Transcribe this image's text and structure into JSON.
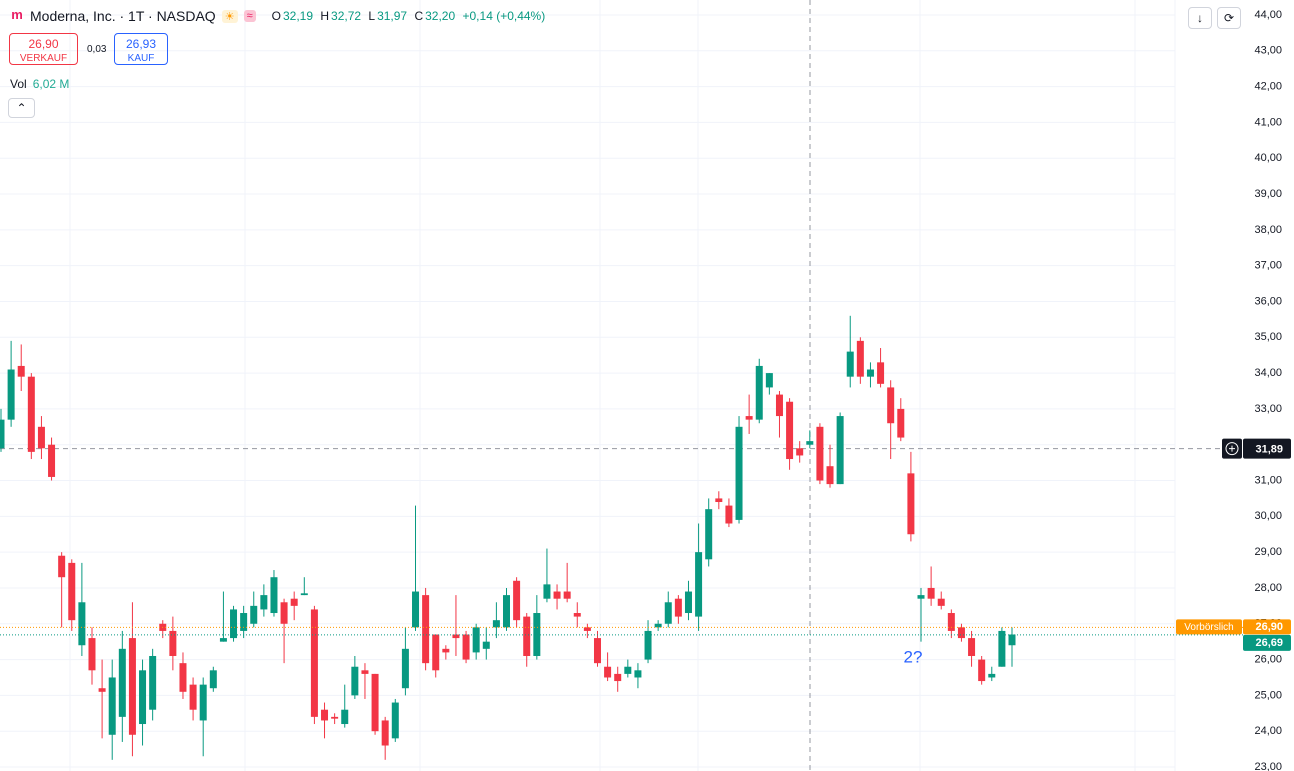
{
  "chart_data": {
    "type": "candlestick",
    "title": "Moderna, Inc. · 1T · NASDAQ",
    "legend": {
      "o_label": "O",
      "o": "32,19",
      "h_label": "H",
      "h": "32,72",
      "l_label": "L",
      "l": "31,97",
      "c_label": "C",
      "c": "32,20",
      "change": "+0,14 (+0,44%)"
    },
    "trade": {
      "sell": "26,90",
      "sell_label": "VERKAUF",
      "spread": "0,03",
      "buy": "26,93",
      "buy_label": "KAUF"
    },
    "volume": {
      "label": "Vol",
      "value": "6,02 M"
    },
    "up_color": "#089981",
    "down_color": "#f23645",
    "ohlc": {
      "open": [
        31.9,
        32.7,
        34.2,
        33.9,
        32.5,
        32.0,
        28.9,
        28.7,
        26.4,
        26.6,
        25.2,
        23.9,
        24.4,
        26.6,
        24.2,
        24.6,
        27.0,
        26.8,
        25.9,
        25.3,
        24.3,
        25.2,
        26.5,
        26.6,
        26.8,
        27.0,
        27.4,
        27.3,
        27.6,
        27.7,
        27.8,
        27.4,
        24.6,
        24.4,
        24.2,
        25.0,
        25.7,
        25.6,
        24.3,
        23.8,
        25.2,
        26.9,
        27.8,
        26.7,
        26.3,
        26.7,
        26.7,
        26.2,
        26.3,
        26.9,
        26.9,
        28.2,
        27.2,
        26.1,
        27.7,
        27.9,
        27.9,
        27.3,
        26.9,
        26.6,
        25.8,
        25.6,
        25.6,
        25.5,
        26.0,
        26.9,
        27.0,
        27.7,
        27.3,
        27.2,
        28.8,
        30.5,
        30.3,
        29.9,
        32.8,
        32.7,
        33.6,
        33.4,
        33.2,
        31.9,
        32.0,
        32.5,
        31.4,
        30.9,
        33.9,
        34.9,
        33.9,
        34.3,
        33.6,
        33.0,
        31.2,
        27.7,
        28.0,
        27.7,
        27.3,
        26.9,
        26.6,
        26.0,
        25.5,
        25.8,
        26.4
      ],
      "high": [
        33.0,
        34.9,
        34.8,
        34.0,
        32.8,
        32.2,
        29.0,
        28.8,
        28.7,
        26.9,
        26.0,
        26.0,
        26.8,
        27.6,
        26.0,
        26.3,
        27.1,
        27.2,
        26.2,
        25.5,
        25.5,
        25.8,
        27.9,
        27.5,
        27.5,
        27.9,
        28.1,
        28.5,
        27.7,
        27.9,
        28.3,
        27.5,
        24.8,
        24.5,
        25.3,
        26.1,
        25.9,
        25.6,
        24.4,
        24.9,
        26.9,
        30.3,
        28.0,
        26.7,
        26.4,
        27.8,
        26.8,
        27.0,
        26.9,
        27.6,
        28.0,
        28.3,
        27.3,
        27.8,
        29.1,
        28.1,
        28.7,
        27.6,
        27.0,
        26.8,
        26.2,
        25.8,
        26.0,
        25.9,
        27.1,
        27.1,
        27.9,
        27.8,
        28.2,
        29.8,
        30.5,
        30.7,
        30.5,
        32.8,
        33.4,
        34.4,
        34.0,
        33.5,
        33.3,
        32.1,
        32.4,
        32.6,
        32.0,
        32.9,
        35.6,
        35.0,
        34.3,
        34.7,
        33.8,
        33.3,
        31.8,
        28.0,
        28.6,
        27.9,
        27.4,
        27.0,
        26.8,
        26.1,
        25.8,
        26.9,
        26.9
      ],
      "low": [
        31.8,
        32.5,
        33.5,
        31.6,
        31.6,
        31.0,
        26.9,
        26.8,
        26.1,
        25.3,
        23.8,
        23.2,
        23.7,
        23.3,
        23.6,
        24.3,
        26.6,
        25.7,
        24.9,
        24.3,
        23.3,
        25.1,
        26.5,
        26.5,
        26.6,
        26.9,
        27.2,
        27.2,
        25.9,
        27.1,
        27.8,
        24.2,
        23.8,
        24.2,
        24.1,
        24.9,
        24.9,
        23.9,
        23.2,
        23.7,
        25.0,
        26.8,
        25.7,
        25.5,
        26.0,
        26.1,
        25.9,
        26.0,
        26.0,
        26.6,
        26.8,
        26.9,
        25.8,
        26.0,
        27.6,
        27.4,
        27.6,
        26.9,
        26.6,
        25.8,
        25.4,
        25.1,
        25.5,
        25.2,
        25.9,
        26.8,
        26.9,
        27.0,
        27.1,
        26.8,
        28.6,
        30.2,
        29.7,
        29.8,
        32.3,
        32.6,
        33.4,
        32.2,
        31.3,
        31.5,
        31.9,
        30.9,
        30.8,
        30.9,
        33.6,
        33.7,
        33.6,
        33.6,
        31.6,
        32.1,
        29.3,
        26.5,
        27.5,
        27.4,
        26.6,
        26.5,
        25.8,
        25.3,
        25.4,
        25.8,
        25.8
      ],
      "close": [
        32.7,
        34.1,
        33.9,
        31.8,
        31.9,
        31.1,
        28.3,
        27.1,
        27.6,
        25.7,
        25.1,
        25.5,
        26.3,
        23.9,
        25.7,
        26.1,
        26.8,
        26.1,
        25.1,
        24.6,
        25.3,
        25.7,
        26.6,
        27.4,
        27.3,
        27.5,
        27.8,
        28.3,
        27.0,
        27.5,
        27.85,
        24.4,
        24.3,
        24.35,
        24.6,
        25.8,
        25.6,
        24.0,
        23.6,
        24.8,
        26.3,
        27.9,
        25.9,
        25.7,
        26.2,
        26.6,
        26.0,
        26.9,
        26.5,
        27.1,
        27.8,
        27.1,
        26.1,
        27.3,
        28.1,
        27.7,
        27.7,
        27.2,
        26.8,
        25.9,
        25.5,
        25.4,
        25.8,
        25.7,
        26.8,
        27.0,
        27.6,
        27.2,
        27.9,
        29.0,
        30.2,
        30.4,
        29.8,
        32.5,
        32.7,
        34.2,
        34.0,
        32.8,
        31.6,
        31.7,
        32.1,
        31.0,
        30.9,
        32.8,
        34.6,
        33.9,
        34.1,
        33.7,
        32.6,
        32.2,
        29.5,
        27.8,
        27.7,
        27.5,
        26.8,
        26.6,
        26.1,
        25.4,
        25.6,
        26.8,
        26.7
      ]
    },
    "ylim": [
      23,
      44
    ],
    "yticks": [
      {
        "value": 44,
        "label": "44,00"
      },
      {
        "value": 43,
        "label": "43,00"
      },
      {
        "value": 42,
        "label": "42,00"
      },
      {
        "value": 41,
        "label": "41,00"
      },
      {
        "value": 40,
        "label": "40,00"
      },
      {
        "value": 39,
        "label": "39,00"
      },
      {
        "value": 38,
        "label": "38,00"
      },
      {
        "value": 37,
        "label": "37,00"
      },
      {
        "value": 36,
        "label": "36,00"
      },
      {
        "value": 35,
        "label": "35,00"
      },
      {
        "value": 34,
        "label": "34,00"
      },
      {
        "value": 33,
        "label": "33,00"
      },
      {
        "value": 32,
        "label": "32,00"
      },
      {
        "value": 31,
        "label": "31,00"
      },
      {
        "value": 30,
        "label": "30,00"
      },
      {
        "value": 29,
        "label": "29,00"
      },
      {
        "value": 28,
        "label": "28,00"
      },
      {
        "value": 27,
        "label": "27,00"
      },
      {
        "value": 26,
        "label": "26,00"
      },
      {
        "value": 25,
        "label": "25,00"
      },
      {
        "value": 24,
        "label": "24,00"
      },
      {
        "value": 23,
        "label": "23,00"
      }
    ],
    "grid": true,
    "crosshair": {
      "value": 31.89,
      "label": "31,89"
    },
    "premarket": {
      "name": "Vorbörslich",
      "value": 26.9,
      "label": "26,90",
      "color": "#ff9800"
    },
    "last_price": {
      "value": 26.69,
      "label": "26,69",
      "color": "#089981"
    },
    "annotations": [
      "2?"
    ]
  }
}
